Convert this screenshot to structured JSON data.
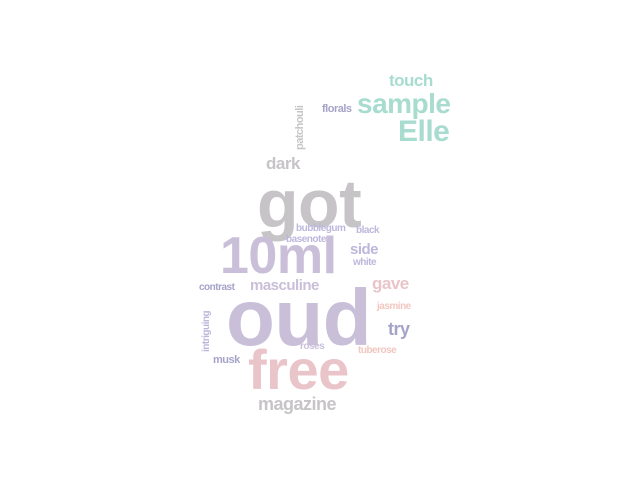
{
  "words": {
    "oud": "oud",
    "free": "free",
    "ten_ml": "10ml",
    "got": "got",
    "elle": "Elle",
    "sample": "sample",
    "touch": "touch",
    "magazine": "magazine",
    "dark": "dark",
    "masculine": "masculine",
    "gave": "gave",
    "try": "try",
    "side": "side",
    "black": "black",
    "bubblegum": "bubblegum",
    "basenotes": "basenotes",
    "white": "white",
    "contrast": "contrast",
    "jasmine": "jasmine",
    "intriguing": "intriguing",
    "musk": "musk",
    "roses": "roses",
    "tuberose": "tuberose",
    "florals": "florals",
    "patchouli": "patchouli"
  },
  "colors": {
    "purple": "#c9bfd8",
    "pink": "#e9c4c9",
    "grey": "#c7c4c8",
    "teal": "#a8dccf",
    "lavender": "#bdb7dc",
    "peach": "#f1c7c0",
    "blue_purple": "#a6a3c9"
  }
}
